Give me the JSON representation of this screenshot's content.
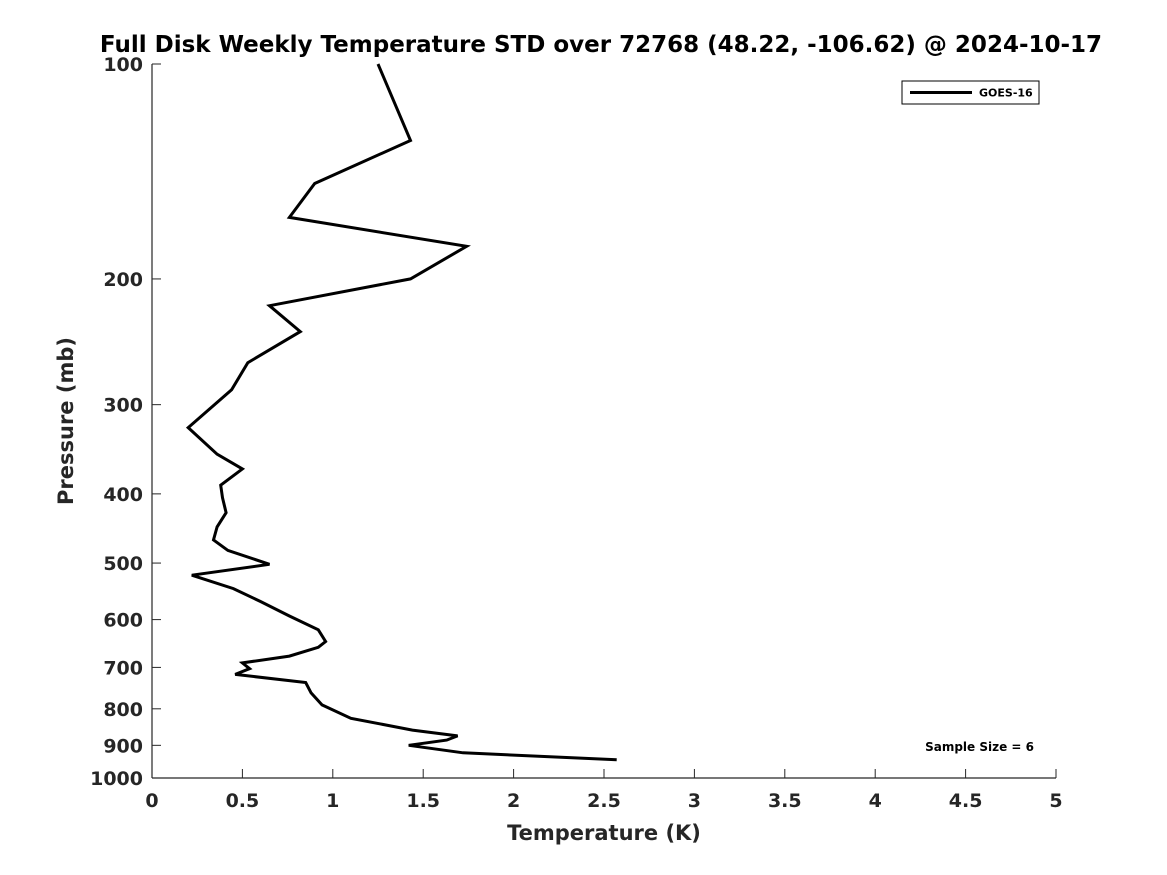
{
  "chart_data": {
    "type": "line",
    "title": "Full Disk Weekly Temperature STD over 72768 (48.22, -106.62) @ 2024-10-17",
    "xlabel": "Temperature (K)",
    "ylabel": "Pressure (mb)",
    "xlim": [
      0,
      5
    ],
    "ylim": [
      100,
      1000
    ],
    "y_scale": "log",
    "y_reversed": true,
    "x_ticks": [
      0,
      0.5,
      1,
      1.5,
      2,
      2.5,
      3,
      3.5,
      4,
      4.5,
      5
    ],
    "x_tick_labels": [
      "0",
      "0.5",
      "1",
      "1.5",
      "2",
      "2.5",
      "3",
      "3.5",
      "4",
      "4.5",
      "5"
    ],
    "y_ticks": [
      100,
      200,
      300,
      400,
      500,
      600,
      700,
      800,
      900,
      1000
    ],
    "y_tick_labels": [
      "100",
      "200",
      "300",
      "400",
      "500",
      "600",
      "700",
      "800",
      "900",
      "1000"
    ],
    "grid": false,
    "legend_position": "top-right",
    "annotation": "Sample Size = 6",
    "series": [
      {
        "name": "GOES-16",
        "color": "#000000",
        "x": [
          1.25,
          1.43,
          0.9,
          0.76,
          1.74,
          1.43,
          0.65,
          0.82,
          0.53,
          0.44,
          0.2,
          0.36,
          0.5,
          0.38,
          0.39,
          0.41,
          0.36,
          0.34,
          0.42,
          0.65,
          0.22,
          0.45,
          0.6,
          0.76,
          0.92,
          0.96,
          0.92,
          0.76,
          0.5,
          0.54,
          0.46,
          0.85,
          0.88,
          0.94,
          1.1,
          1.44,
          1.69,
          1.63,
          1.42,
          1.72,
          2.57
        ],
        "y": [
          100,
          128,
          147,
          164,
          180,
          200,
          218,
          237,
          262,
          286,
          323,
          352,
          369,
          389,
          405,
          425,
          445,
          464,
          480,
          502,
          520,
          543,
          566,
          593,
          620,
          644,
          656,
          675,
          690,
          703,
          716,
          735,
          760,
          790,
          825,
          857,
          873,
          885,
          900,
          922,
          943
        ]
      }
    ]
  }
}
